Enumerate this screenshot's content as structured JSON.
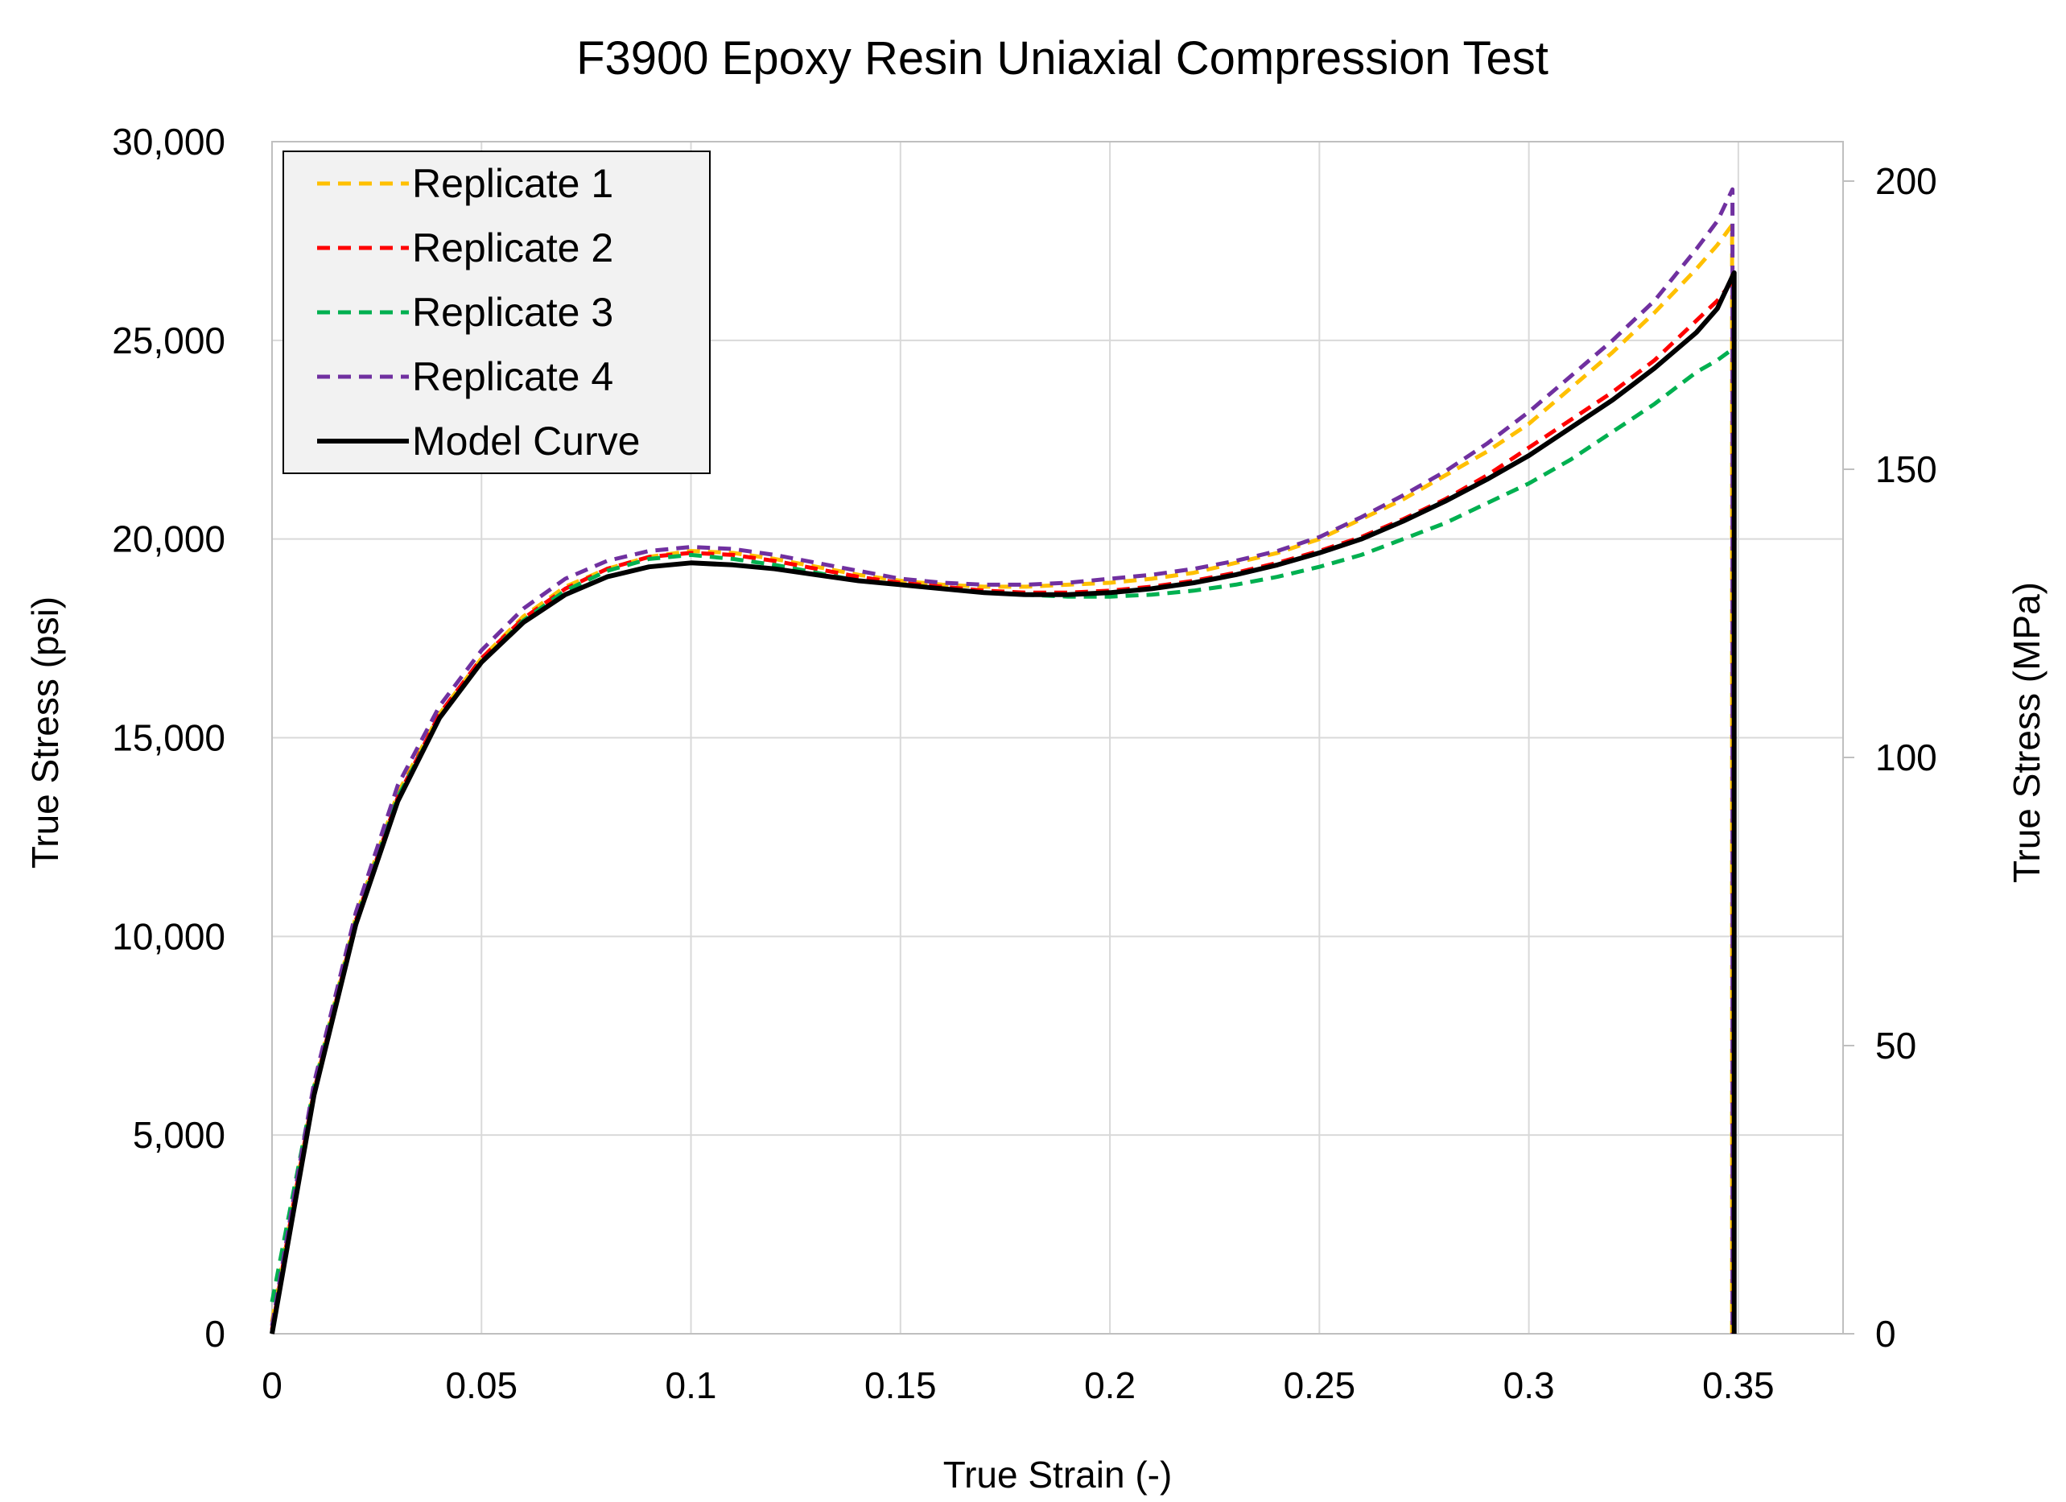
{
  "chart_data": {
    "type": "line",
    "title": "F3900 Epoxy Resin Uniaxial Compression Test",
    "xlabel": "True Strain (-)",
    "ylabel": "True Stress (psi)",
    "y2label": "True Stress (MPa)",
    "xlim": [
      0,
      0.375
    ],
    "ylim": [
      0,
      30000
    ],
    "y2lim": [
      0,
      206.84
    ],
    "x_ticks": [
      0,
      0.05,
      0.1,
      0.15,
      0.2,
      0.25,
      0.3,
      0.35
    ],
    "x_tick_labels": [
      "0",
      "0.05",
      "0.1",
      "0.15",
      "0.2",
      "0.25",
      "0.3",
      "0.35"
    ],
    "y_ticks": [
      0,
      5000,
      10000,
      15000,
      20000,
      25000,
      30000
    ],
    "y_tick_labels": [
      "0",
      "5,000",
      "10,000",
      "15,000",
      "20,000",
      "25,000",
      "30,000"
    ],
    "y2_ticks": [
      0,
      50,
      100,
      150,
      200
    ],
    "y2_tick_labels": [
      "0",
      "50",
      "100",
      "150",
      "200"
    ],
    "grid": true,
    "legend_position": "top-left",
    "series": [
      {
        "name": "Replicate 1",
        "color": "#FFC000",
        "dash": "dashed",
        "x": [
          0,
          0.005,
          0.01,
          0.02,
          0.03,
          0.04,
          0.05,
          0.06,
          0.07,
          0.08,
          0.09,
          0.1,
          0.11,
          0.12,
          0.13,
          0.14,
          0.15,
          0.16,
          0.17,
          0.18,
          0.19,
          0.2,
          0.21,
          0.22,
          0.23,
          0.24,
          0.25,
          0.26,
          0.27,
          0.28,
          0.29,
          0.3,
          0.31,
          0.32,
          0.33,
          0.34,
          0.345,
          0.3485,
          0.3485
        ],
        "y": [
          300,
          3300,
          6200,
          10500,
          13600,
          15600,
          17000,
          18050,
          18800,
          19250,
          19550,
          19700,
          19650,
          19500,
          19300,
          19100,
          18950,
          18850,
          18800,
          18800,
          18850,
          18900,
          19000,
          19150,
          19400,
          19650,
          20000,
          20500,
          21000,
          21600,
          22200,
          22900,
          23800,
          24700,
          25700,
          26800,
          27400,
          27900,
          0
        ]
      },
      {
        "name": "Replicate 2",
        "color": "#FF0000",
        "dash": "dashed",
        "x": [
          0,
          0.005,
          0.01,
          0.02,
          0.03,
          0.04,
          0.05,
          0.06,
          0.07,
          0.08,
          0.09,
          0.1,
          0.11,
          0.12,
          0.13,
          0.14,
          0.15,
          0.16,
          0.17,
          0.18,
          0.19,
          0.2,
          0.21,
          0.22,
          0.23,
          0.24,
          0.25,
          0.26,
          0.27,
          0.28,
          0.29,
          0.3,
          0.31,
          0.32,
          0.33,
          0.34,
          0.345,
          0.3487,
          0.3487
        ],
        "y": [
          100,
          3200,
          6100,
          10400,
          13500,
          15600,
          17000,
          18000,
          18750,
          19250,
          19550,
          19650,
          19600,
          19450,
          19250,
          19050,
          18900,
          18800,
          18700,
          18650,
          18650,
          18700,
          18800,
          18950,
          19150,
          19400,
          19700,
          20050,
          20500,
          21000,
          21600,
          22300,
          23000,
          23700,
          24500,
          25500,
          26000,
          26500,
          0
        ]
      },
      {
        "name": "Replicate 3",
        "color": "#00B050",
        "dash": "dashed",
        "x": [
          0,
          0.005,
          0.01,
          0.02,
          0.03,
          0.04,
          0.05,
          0.06,
          0.07,
          0.08,
          0.09,
          0.1,
          0.11,
          0.12,
          0.13,
          0.14,
          0.15,
          0.16,
          0.17,
          0.18,
          0.19,
          0.2,
          0.21,
          0.22,
          0.23,
          0.24,
          0.25,
          0.26,
          0.27,
          0.28,
          0.29,
          0.3,
          0.31,
          0.32,
          0.33,
          0.34,
          0.345,
          0.3489,
          0.3489
        ],
        "y": [
          800,
          3500,
          6200,
          10400,
          13500,
          15500,
          16900,
          17950,
          18700,
          19200,
          19500,
          19600,
          19500,
          19350,
          19150,
          18950,
          18850,
          18750,
          18650,
          18600,
          18550,
          18550,
          18600,
          18700,
          18850,
          19050,
          19300,
          19600,
          20000,
          20400,
          20900,
          21400,
          22000,
          22700,
          23400,
          24200,
          24500,
          24800,
          0
        ]
      },
      {
        "name": "Replicate 4",
        "color": "#7030A0",
        "dash": "dashed",
        "x": [
          0,
          0.005,
          0.01,
          0.02,
          0.03,
          0.04,
          0.05,
          0.06,
          0.07,
          0.08,
          0.09,
          0.1,
          0.11,
          0.12,
          0.13,
          0.14,
          0.15,
          0.16,
          0.17,
          0.18,
          0.19,
          0.2,
          0.21,
          0.22,
          0.23,
          0.24,
          0.25,
          0.26,
          0.27,
          0.28,
          0.29,
          0.3,
          0.31,
          0.32,
          0.33,
          0.34,
          0.345,
          0.3486,
          0.3486
        ],
        "y": [
          200,
          3300,
          6300,
          10600,
          13800,
          15800,
          17200,
          18250,
          19000,
          19450,
          19700,
          19800,
          19750,
          19600,
          19400,
          19200,
          19000,
          18900,
          18850,
          18850,
          18900,
          19000,
          19100,
          19250,
          19450,
          19700,
          20050,
          20550,
          21100,
          21700,
          22400,
          23200,
          24100,
          25000,
          26000,
          27300,
          28000,
          28800,
          0
        ]
      },
      {
        "name": "Model Curve",
        "color": "#000000",
        "dash": "solid",
        "x": [
          0,
          0.005,
          0.01,
          0.02,
          0.03,
          0.04,
          0.05,
          0.06,
          0.07,
          0.08,
          0.09,
          0.1,
          0.11,
          0.12,
          0.13,
          0.14,
          0.15,
          0.16,
          0.17,
          0.18,
          0.19,
          0.2,
          0.21,
          0.22,
          0.23,
          0.24,
          0.25,
          0.26,
          0.27,
          0.28,
          0.29,
          0.3,
          0.31,
          0.32,
          0.33,
          0.34,
          0.345,
          0.349,
          0.349
        ],
        "y": [
          0,
          3000,
          6000,
          10300,
          13400,
          15500,
          16900,
          17900,
          18600,
          19050,
          19300,
          19400,
          19350,
          19250,
          19100,
          18950,
          18850,
          18750,
          18650,
          18600,
          18600,
          18650,
          18750,
          18900,
          19100,
          19350,
          19650,
          20000,
          20450,
          20950,
          21500,
          22100,
          22800,
          23500,
          24300,
          25200,
          25800,
          26700,
          0
        ]
      }
    ]
  }
}
